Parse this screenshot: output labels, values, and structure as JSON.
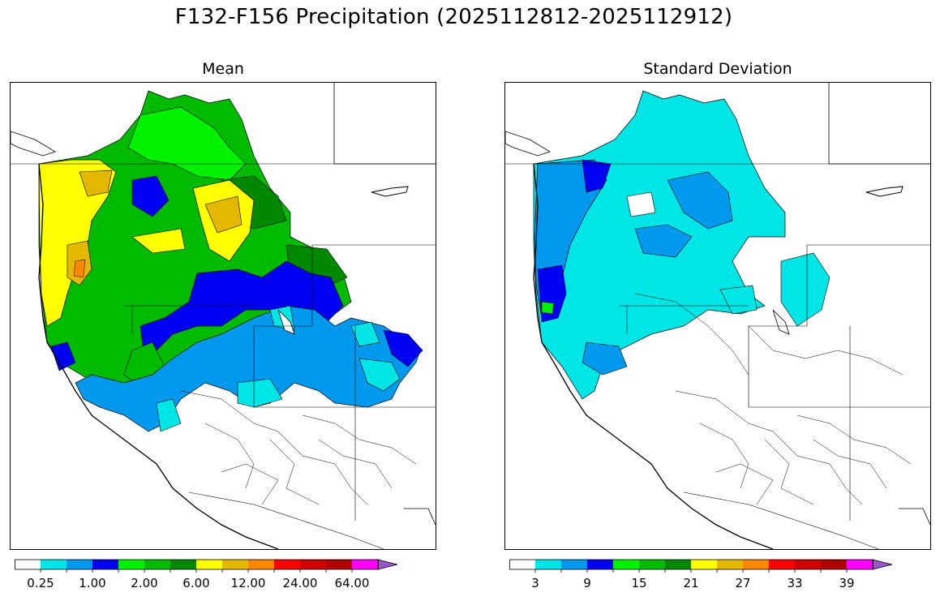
{
  "title": "F132-F156 Precipitation (2025112812-2025112912)",
  "panels": {
    "mean": {
      "title": "Mean"
    },
    "sd": {
      "title": "Standard Deviation"
    }
  },
  "colorbars": {
    "mean": {
      "colors": [
        "#ffffff",
        "#00e5e5",
        "#0099ee",
        "#0000f2",
        "#00f200",
        "#00bb00",
        "#008800",
        "#ffff00",
        "#e5b800",
        "#ff8800",
        "#ff0000",
        "#d00000",
        "#b00000",
        "#ff00ff",
        "#9955cc"
      ],
      "labels": [
        "0.25",
        "1.00",
        "2.00",
        "6.00",
        "12.00",
        "24.00",
        "64.00"
      ]
    },
    "sd": {
      "colors": [
        "#ffffff",
        "#00e5e5",
        "#0099ee",
        "#0000f2",
        "#00f200",
        "#00bb00",
        "#008800",
        "#ffff00",
        "#e5b800",
        "#ff8800",
        "#ff0000",
        "#d00000",
        "#b00000",
        "#ff00ff",
        "#9955cc"
      ],
      "labels": [
        "3",
        "9",
        "15",
        "21",
        "27",
        "33",
        "39"
      ]
    }
  }
}
